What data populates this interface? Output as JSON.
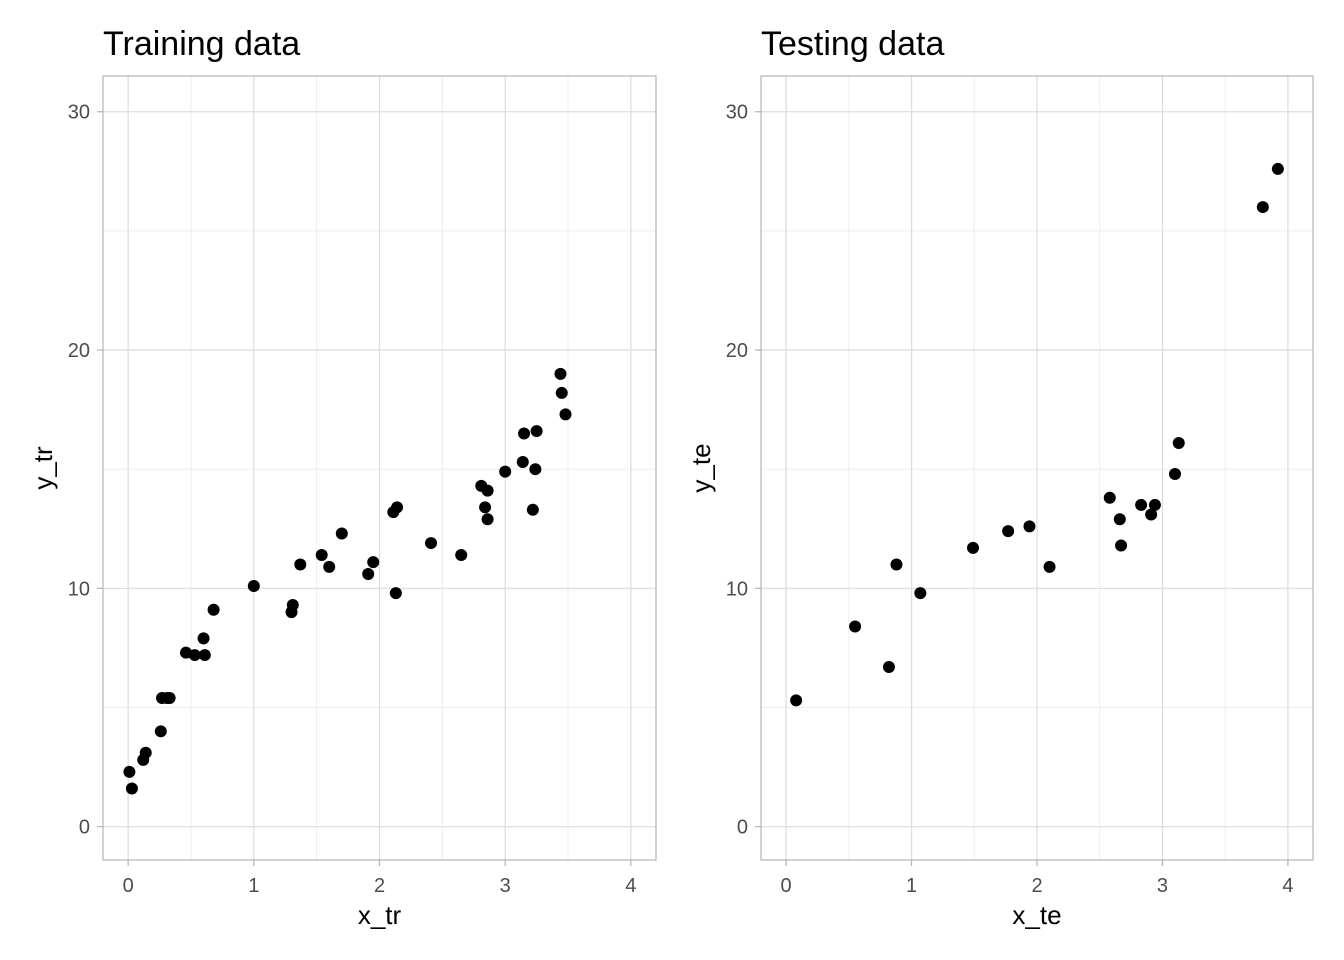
{
  "chart_data": [
    {
      "type": "scatter",
      "title": "Training data",
      "xlabel": "x_tr",
      "ylabel": "y_tr",
      "xlim": [
        -0.2,
        4.2
      ],
      "ylim": [
        -1.4,
        31.5
      ],
      "xticks": [
        0,
        1,
        2,
        3,
        4
      ],
      "yticks": [
        0,
        10,
        20,
        30
      ],
      "grid": true,
      "point_color": "#000000",
      "x": [
        0.01,
        0.03,
        0.12,
        0.14,
        0.26,
        0.27,
        0.31,
        0.33,
        0.46,
        0.53,
        0.6,
        0.61,
        0.68,
        1.0,
        1.3,
        1.31,
        1.37,
        1.54,
        1.6,
        1.7,
        1.91,
        1.95,
        2.11,
        2.13,
        2.14,
        2.41,
        2.65,
        2.81,
        2.84,
        2.86,
        2.86,
        3.0,
        3.14,
        3.15,
        3.22,
        3.24,
        3.25,
        3.44,
        3.45,
        3.48
      ],
      "y": [
        2.3,
        1.6,
        2.8,
        3.1,
        4.0,
        5.4,
        5.4,
        5.4,
        7.3,
        7.2,
        7.9,
        7.2,
        9.1,
        10.1,
        9.0,
        9.3,
        11.0,
        11.4,
        10.9,
        12.3,
        10.6,
        11.1,
        13.2,
        9.8,
        13.4,
        11.9,
        11.4,
        14.3,
        13.4,
        12.9,
        14.1,
        14.9,
        15.3,
        16.5,
        13.3,
        15.0,
        16.6,
        19.0,
        18.2,
        17.3
      ]
    },
    {
      "type": "scatter",
      "title": "Testing data",
      "xlabel": "x_te",
      "ylabel": "y_te",
      "xlim": [
        -0.2,
        4.2
      ],
      "ylim": [
        -1.4,
        31.5
      ],
      "xticks": [
        0,
        1,
        2,
        3,
        4
      ],
      "yticks": [
        0,
        10,
        20,
        30
      ],
      "grid": true,
      "point_color": "#000000",
      "x": [
        0.08,
        0.55,
        0.82,
        0.88,
        1.07,
        1.49,
        1.77,
        1.94,
        2.1,
        2.58,
        2.66,
        2.67,
        2.83,
        2.91,
        2.94,
        3.1,
        3.13,
        3.8,
        3.92
      ],
      "y": [
        5.3,
        8.4,
        6.7,
        11.0,
        9.8,
        11.7,
        12.4,
        12.6,
        10.9,
        13.8,
        12.9,
        11.8,
        13.5,
        13.1,
        13.5,
        14.8,
        16.1,
        26.0,
        27.6
      ]
    }
  ]
}
